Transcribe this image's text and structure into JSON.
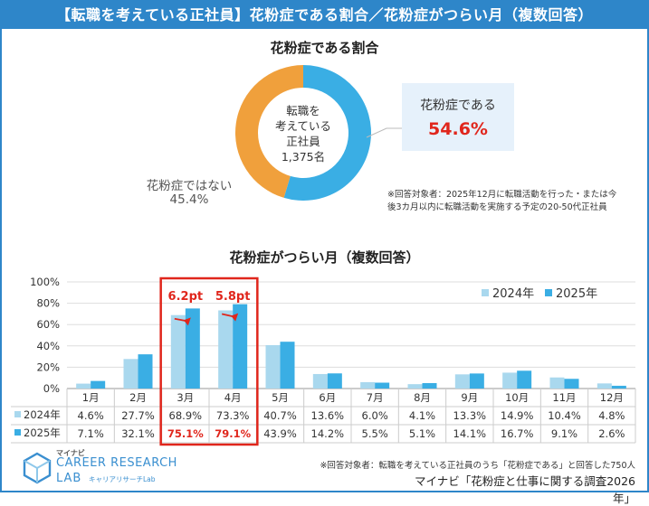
{
  "header": {
    "title": "【転職を考えている正社員】花粉症である割合／花粉症がつらい月（複数回答）"
  },
  "section1": {
    "title": "花粉症である割合",
    "center_lines": [
      "転職を",
      "考えている",
      "正社員",
      "1,375名"
    ],
    "callout_label": "花粉症である",
    "callout_value": "54.6%",
    "not_label": "花粉症ではない",
    "not_value": "45.4%",
    "note": "※回答対象者：2025年12月に転職活動を行った・または今後3カ月以内に転職活動を実施する予定の20-50代正社員"
  },
  "section2": {
    "title": "花粉症がつらい月（複数回答）"
  },
  "colors": {
    "banner": "#2e86c9",
    "light": "#a9d8ee",
    "dark": "#3aaee4",
    "red": "#e0261c",
    "orange": "#f0a03c"
  },
  "chart_data": [
    {
      "type": "pie",
      "title": "花粉症である割合",
      "labels": [
        "花粉症である",
        "花粉症ではない"
      ],
      "values": [
        54.6,
        45.4
      ],
      "colors": [
        "#3aaee4",
        "#f0a03c"
      ]
    },
    {
      "type": "bar",
      "title": "花粉症がつらい月（複数回答）",
      "categories": [
        "1月",
        "2月",
        "3月",
        "4月",
        "5月",
        "6月",
        "7月",
        "8月",
        "9月",
        "10月",
        "11月",
        "12月"
      ],
      "series": [
        {
          "name": "2024年",
          "values": [
            4.6,
            27.7,
            68.9,
            73.3,
            40.7,
            13.6,
            6.0,
            4.1,
            13.3,
            14.9,
            10.4,
            4.8
          ],
          "labels": [
            "4.6%",
            "27.7%",
            "68.9%",
            "73.3%",
            "40.7%",
            "13.6%",
            "6.0%",
            "4.1%",
            "13.3%",
            "14.9%",
            "10.4%",
            "4.8%"
          ]
        },
        {
          "name": "2025年",
          "values": [
            7.1,
            32.1,
            75.1,
            79.1,
            43.9,
            14.2,
            5.5,
            5.1,
            14.1,
            16.7,
            9.1,
            2.6
          ],
          "labels": [
            "7.1%",
            "32.1%",
            "75.1%",
            "79.1%",
            "43.9%",
            "14.2%",
            "5.5%",
            "5.1%",
            "14.1%",
            "16.7%",
            "9.1%",
            "2.6%"
          ]
        }
      ],
      "ylim": [
        0,
        100
      ],
      "yticks": [
        "0%",
        "20%",
        "40%",
        "60%",
        "80%",
        "100%"
      ],
      "legend": [
        "2024年",
        "2025年"
      ],
      "annotations": [
        {
          "category": "3月",
          "text": "6.2pt"
        },
        {
          "category": "4月",
          "text": "5.8pt"
        }
      ],
      "highlight_categories": [
        "3月",
        "4月"
      ]
    }
  ],
  "footer": {
    "note": "※回答対象者：転職を考えている正社員のうち「花粉症である」と回答した750人",
    "source": "マイナビ「花粉症と仕事に関する調査2026年」"
  },
  "logo": {
    "brand": "マイナビ",
    "line1": "CAREER RESEARCH",
    "line2": "LAB",
    "kana": "キャリアリサーチLab"
  }
}
